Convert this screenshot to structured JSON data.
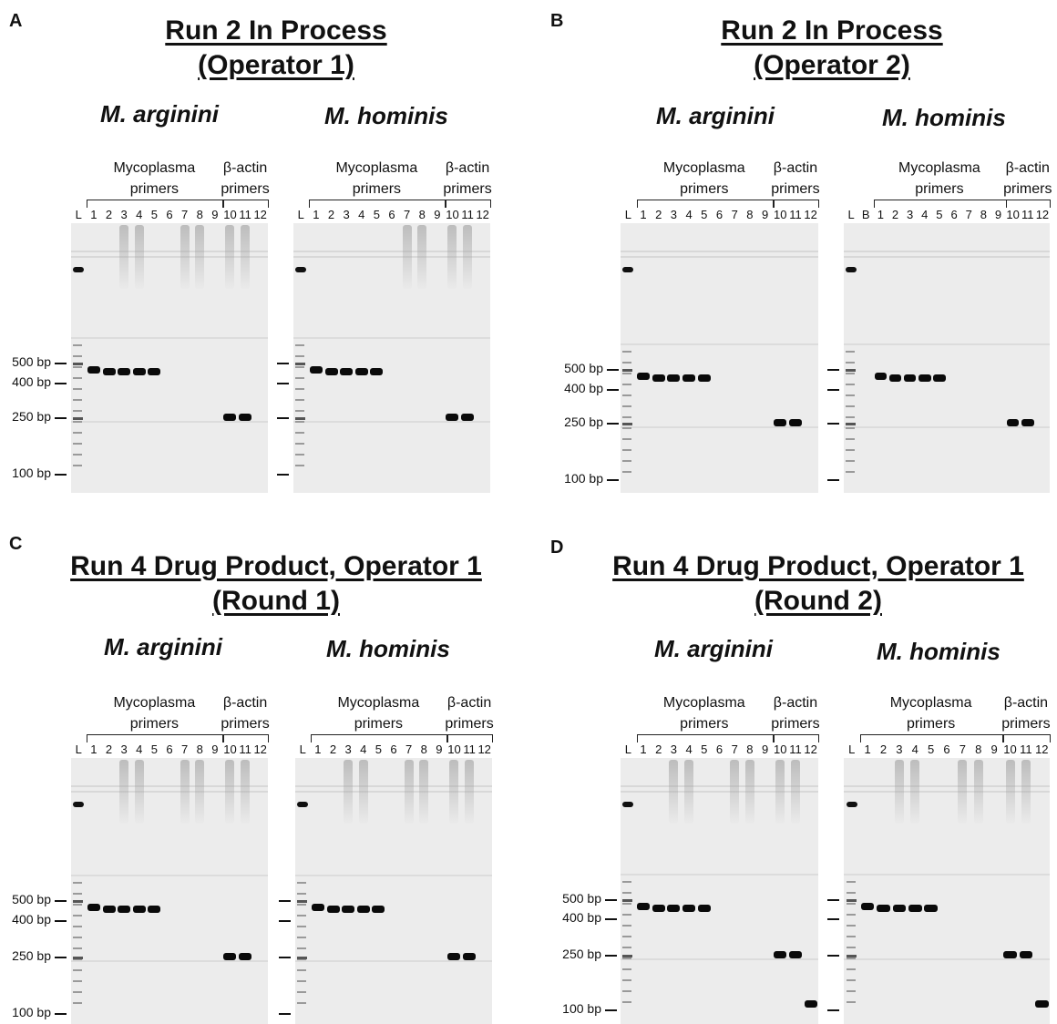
{
  "labels": {
    "mycoplasma_primers": "Mycoplasma\nprimers",
    "actin_primers": "β-actin\nprimers",
    "bp_500": "500 bp",
    "bp_400": "400 bp",
    "bp_250": "250 bp",
    "bp_100": "100 bp"
  },
  "panels": [
    {
      "letter": "A",
      "title_line1": "Run 2 In Process",
      "title_line2": "(Operator 1)",
      "left_species": "M. arginini",
      "right_species": "M. hominis"
    },
    {
      "letter": "B",
      "title_line1": "Run 2 In Process",
      "title_line2": "(Operator 2)",
      "left_species": "M. arginini",
      "right_species": "M. hominis"
    },
    {
      "letter": "C",
      "title_line1": "Run 4 Drug Product, Operator 1",
      "title_line2": "(Round 1)",
      "left_species": "M. arginini",
      "right_species": "M. hominis"
    },
    {
      "letter": "D",
      "title_line1": "Run 4 Drug Product, Operator 1",
      "title_line2": "(Round 2)",
      "left_species": "M. arginini",
      "right_species": "M. hominis"
    }
  ],
  "lane_labels_standard": [
    "L",
    "1",
    "2",
    "3",
    "4",
    "5",
    "6",
    "7",
    "8",
    "9",
    "10",
    "11",
    "12"
  ],
  "lane_labels_with_blank": [
    "L",
    "B",
    "1",
    "2",
    "3",
    "4",
    "5",
    "6",
    "7",
    "8",
    "9",
    "10",
    "11",
    "12"
  ],
  "colors": {
    "band": "#0a0a0a",
    "gel_background": "#ececec"
  }
}
